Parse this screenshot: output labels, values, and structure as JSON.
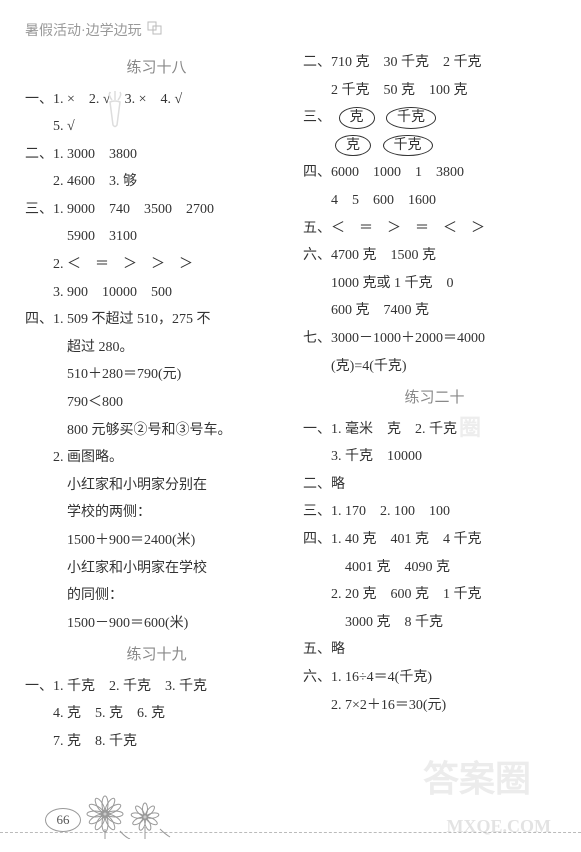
{
  "header": {
    "text": "暑假活动·边学边玩"
  },
  "left": {
    "title18": "练习十八",
    "lines18": [
      {
        "cls": "line",
        "text": "一、1. ×　2. √　3. ×　4. √"
      },
      {
        "cls": "line indent1",
        "text": "5. √"
      },
      {
        "cls": "line",
        "text": "二、1. 3000　3800"
      },
      {
        "cls": "line indent1",
        "text": "2. 4600　3. 够"
      },
      {
        "cls": "line",
        "text": "三、1. 9000　740　3500　2700"
      },
      {
        "cls": "line indent2",
        "text": "5900　3100"
      },
      {
        "cls": "line indent1",
        "text": "2. ＜　＝　＞　＞　＞"
      },
      {
        "cls": "line indent1",
        "text": "3. 900　10000　500"
      },
      {
        "cls": "line",
        "text": "四、1. 509 不超过 510，275 不"
      },
      {
        "cls": "line indent2",
        "text": "超过 280。"
      },
      {
        "cls": "line indent2",
        "text": "510＋280＝790(元)"
      },
      {
        "cls": "line indent2",
        "text": "790＜800"
      },
      {
        "cls": "line indent2",
        "text": "800 元够买②号和③号车。"
      },
      {
        "cls": "line indent1",
        "text": "2. 画图略。"
      },
      {
        "cls": "line indent2",
        "text": "小红家和小明家分别在"
      },
      {
        "cls": "line indent2",
        "text": "学校的两侧："
      },
      {
        "cls": "line indent2",
        "text": "1500＋900＝2400(米)"
      },
      {
        "cls": "line indent2",
        "text": "小红家和小明家在学校"
      },
      {
        "cls": "line indent2",
        "text": "的同侧："
      },
      {
        "cls": "line indent2",
        "text": "1500－900＝600(米)"
      }
    ],
    "title19": "练习十九",
    "lines19": [
      {
        "cls": "line",
        "text": "一、1. 千克　2. 千克　3. 千克"
      },
      {
        "cls": "line indent1",
        "text": "4. 克　5. 克　6. 克"
      },
      {
        "cls": "line indent1",
        "text": "7. 克　8. 千克"
      }
    ]
  },
  "right": {
    "lines_top": [
      {
        "cls": "line",
        "text": "二、710 克　30 千克　2 千克"
      },
      {
        "cls": "line indent1",
        "text": "2 千克　50 克　100 克"
      }
    ],
    "ovals": {
      "prefix": "三、",
      "row1": [
        "克",
        "千克"
      ],
      "row2": [
        "克",
        "千克"
      ]
    },
    "lines_mid": [
      {
        "cls": "line",
        "text": "四、6000　1000　1　3800"
      },
      {
        "cls": "line indent1",
        "text": "4　5　600　1600"
      },
      {
        "cls": "line",
        "text": "五、＜　＝　＞　＝　＜　＞"
      },
      {
        "cls": "line",
        "text": "六、4700 克　1500 克"
      },
      {
        "cls": "line indent1",
        "text": "1000 克或 1 千克　0"
      },
      {
        "cls": "line indent1",
        "text": "600 克　7400 克"
      },
      {
        "cls": "line",
        "text": "七、3000－1000＋2000＝4000"
      },
      {
        "cls": "line indent1",
        "text": "(克)=4(千克)"
      }
    ],
    "title20": "练习二十",
    "lines20": [
      {
        "cls": "line",
        "text": "一、1. 毫米　克　2. 千克"
      },
      {
        "cls": "line indent1",
        "text": "3. 千克　10000"
      },
      {
        "cls": "line",
        "text": "二、略"
      },
      {
        "cls": "line",
        "text": "三、1. 170　2. 100　100"
      },
      {
        "cls": "line",
        "text": "四、1. 40 克　401 克　4 千克"
      },
      {
        "cls": "line indent2",
        "text": "4001 克　4090 克"
      },
      {
        "cls": "line indent1",
        "text": "2. 20 克　600 克　1 千克"
      },
      {
        "cls": "line indent2",
        "text": "3000 克　8 千克"
      },
      {
        "cls": "line",
        "text": "五、略"
      },
      {
        "cls": "line",
        "text": "六、1. 16÷4＝4(千克)"
      },
      {
        "cls": "line indent1",
        "text": "2. 7×2＋16＝30(元)"
      }
    ]
  },
  "footer": {
    "pageNum": "66"
  },
  "watermarks": {
    "wm1": "答案圈",
    "wm2": "MXQE.COM",
    "wm3": "圈"
  }
}
